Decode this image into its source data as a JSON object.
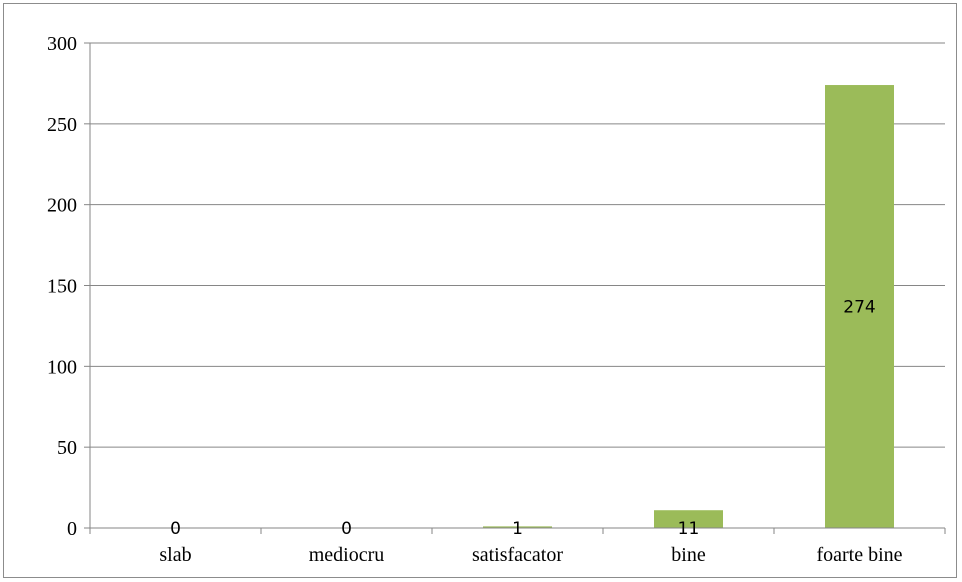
{
  "chart_data": {
    "type": "bar",
    "categories": [
      "slab",
      "mediocru",
      "satisfacator",
      "bine",
      "foarte bine"
    ],
    "values": [
      0,
      0,
      1,
      11,
      274
    ],
    "data_labels": [
      "0",
      "0",
      "1",
      "11",
      "274"
    ],
    "ylim": [
      0,
      300
    ],
    "yticks": [
      0,
      50,
      100,
      150,
      200,
      250,
      300
    ],
    "ytick_labels": [
      "0",
      "50",
      "100",
      "150",
      "200",
      "250",
      "300"
    ],
    "grid": true,
    "legend": "none",
    "bar_color": "#9bbb59",
    "title": "",
    "xlabel": "",
    "ylabel": ""
  }
}
